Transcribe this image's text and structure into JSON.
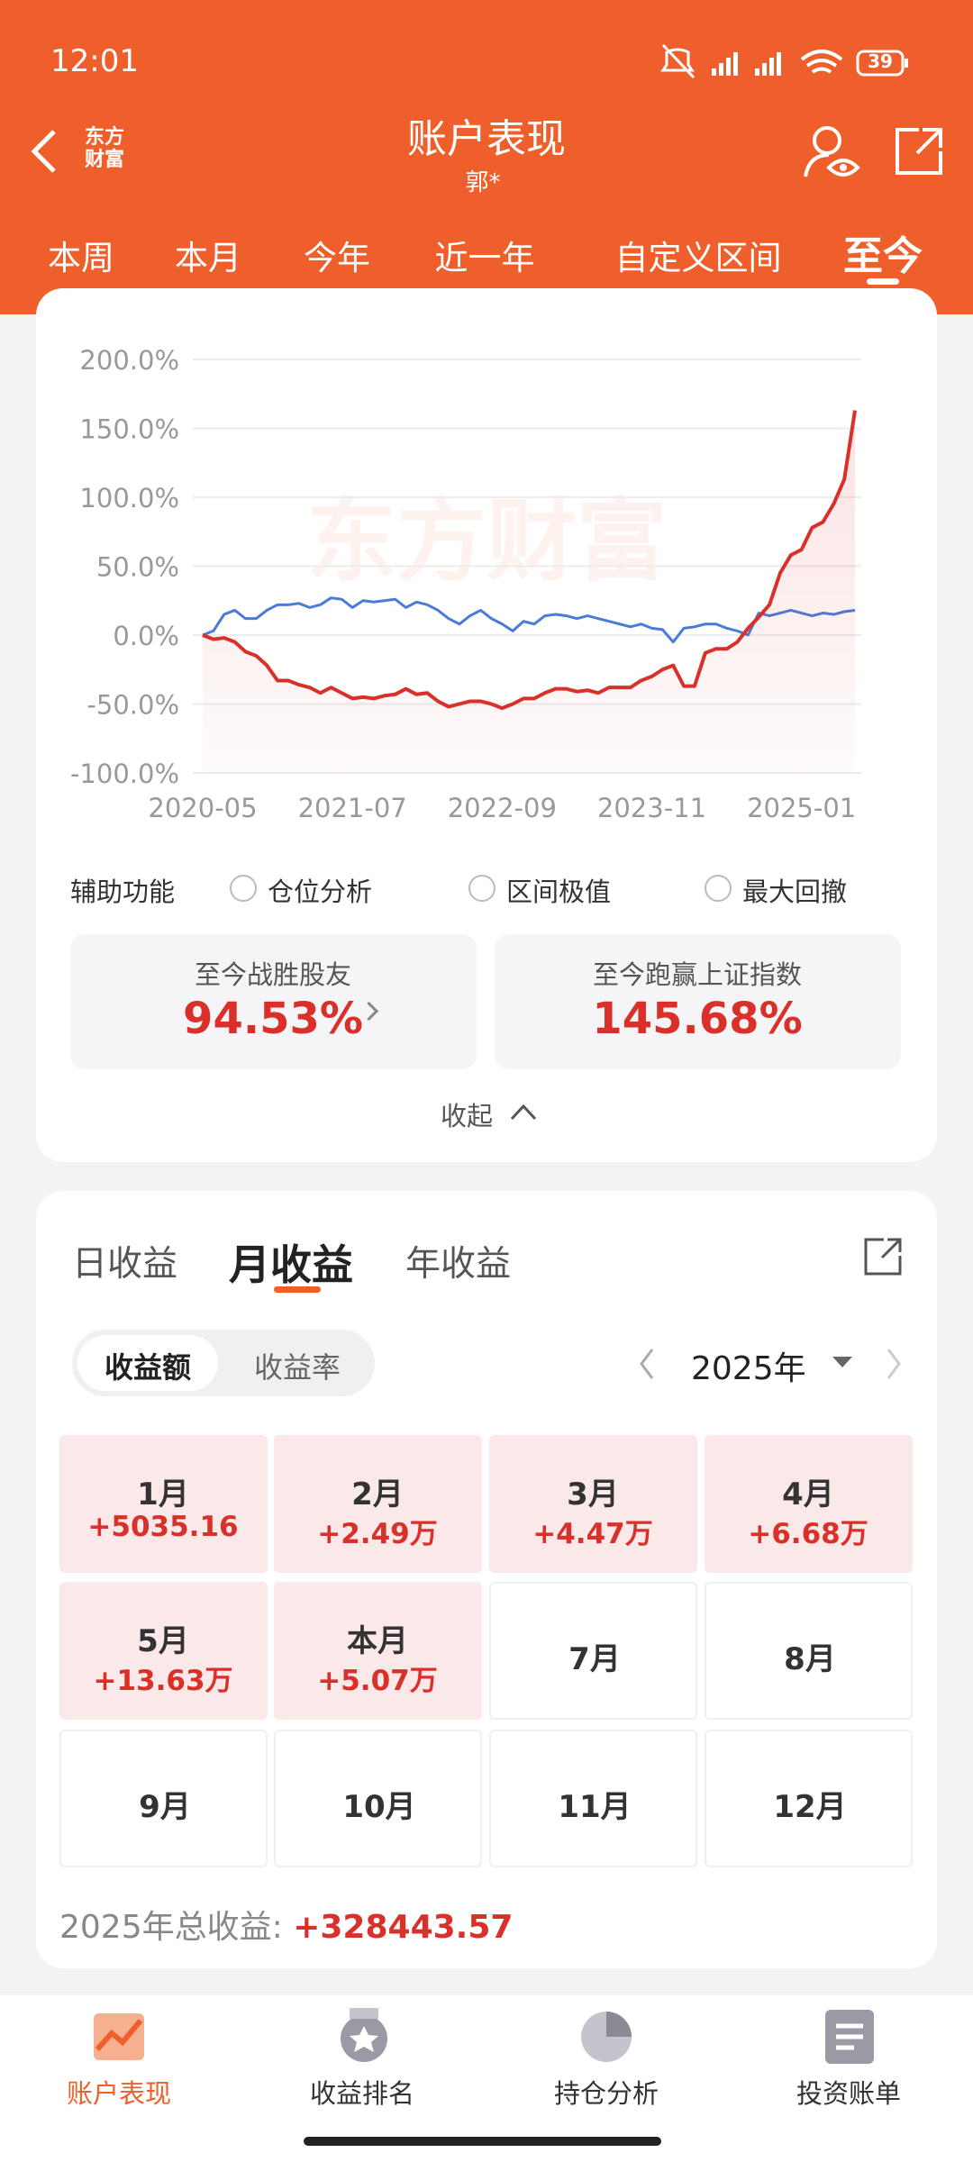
{
  "status_bar": {
    "time": "12:01",
    "battery": "39"
  },
  "header": {
    "title": "账户表现",
    "subtitle": "郭*",
    "logo_lines": [
      "东方",
      "财富"
    ]
  },
  "period_tabs": {
    "items": [
      "本周",
      "本月",
      "今年",
      "近一年",
      "自定义区间",
      "至今"
    ],
    "active": 5
  },
  "chart_data": {
    "type": "line",
    "watermark": "东方财富",
    "x": [
      "2020-05",
      "2020-06",
      "2020-07",
      "2020-08",
      "2020-09",
      "2020-10",
      "2020-11",
      "2020-12",
      "2021-01",
      "2021-02",
      "2021-03",
      "2021-04",
      "2021-05",
      "2021-06",
      "2021-07",
      "2021-08",
      "2021-09",
      "2021-10",
      "2021-11",
      "2021-12",
      "2022-01",
      "2022-02",
      "2022-03",
      "2022-04",
      "2022-05",
      "2022-06",
      "2022-07",
      "2022-08",
      "2022-09",
      "2022-10",
      "2022-11",
      "2022-12",
      "2023-01",
      "2023-02",
      "2023-03",
      "2023-04",
      "2023-05",
      "2023-06",
      "2023-07",
      "2023-08",
      "2023-09",
      "2023-10",
      "2023-11",
      "2023-12",
      "2024-01",
      "2024-02",
      "2024-03",
      "2024-04",
      "2024-05",
      "2024-06",
      "2024-07",
      "2024-08",
      "2024-09",
      "2024-10",
      "2024-11",
      "2024-12",
      "2025-01",
      "2025-02",
      "2025-03",
      "2025-04",
      "2025-05",
      "2025-06"
    ],
    "series": [
      {
        "color": "#d9302a",
        "values": [
          0,
          -3,
          -2,
          -5,
          -12,
          -15,
          -22,
          -33,
          -33,
          -36,
          -38,
          -42,
          -38,
          -42,
          -46,
          -45,
          -46,
          -44,
          -43,
          -39,
          -43,
          -42,
          -48,
          -52,
          -50,
          -48,
          -48,
          -50,
          -53,
          -50,
          -46,
          -46,
          -42,
          -39,
          -39,
          -41,
          -40,
          -42,
          -38,
          -38,
          -38,
          -33,
          -30,
          -25,
          -22,
          -37,
          -37,
          -13,
          -10,
          -10,
          -5,
          5,
          13,
          22,
          45,
          58,
          62,
          78,
          82,
          95,
          113,
          163
        ]
      },
      {
        "color": "#4a7bd8",
        "values": [
          0,
          3,
          15,
          18,
          12,
          12,
          18,
          22,
          22,
          23,
          20,
          22,
          27,
          26,
          20,
          25,
          24,
          25,
          26,
          20,
          24,
          22,
          18,
          12,
          8,
          14,
          18,
          12,
          8,
          3,
          10,
          8,
          14,
          15,
          14,
          12,
          14,
          12,
          10,
          8,
          6,
          8,
          5,
          4,
          -5,
          5,
          6,
          8,
          8,
          5,
          3,
          0,
          16,
          14,
          16,
          18,
          16,
          14,
          16,
          15,
          17,
          18
        ]
      }
    ],
    "ylim": [
      -100,
      200
    ],
    "yticks": [
      {
        "value": 200,
        "label": "200.0%"
      },
      {
        "value": 150,
        "label": "150.0%"
      },
      {
        "value": 100,
        "label": "100.0%"
      },
      {
        "value": 50,
        "label": "50.0%"
      },
      {
        "value": 0,
        "label": "0.0%"
      },
      {
        "value": -50,
        "label": "-50.0%"
      },
      {
        "value": -100,
        "label": "-100.0%"
      }
    ],
    "xticks": [
      "2020-05",
      "2021-07",
      "2022-09",
      "2023-11",
      "2025-01"
    ],
    "grid": true
  },
  "assist": {
    "label": "辅助功能",
    "options": [
      "仓位分析",
      "区间极值",
      "最大回撤"
    ]
  },
  "stats": [
    {
      "label": "至今战胜股友",
      "value": "94.53%"
    },
    {
      "label": "至今跑赢上证指数",
      "value": "145.68%"
    }
  ],
  "collapse": "收起",
  "returns": {
    "tabs": [
      "日收益",
      "月收益",
      "年收益"
    ],
    "active_tab": 1,
    "toggle": [
      "收益额",
      "收益率"
    ],
    "year": "2025年",
    "months": [
      {
        "month": "1月",
        "value": "+5035.16"
      },
      {
        "month": "2月",
        "value": "+2.49万"
      },
      {
        "month": "3月",
        "value": "+4.47万"
      },
      {
        "month": "4月",
        "value": "+6.68万"
      },
      {
        "month": "5月",
        "value": "+13.63万"
      },
      {
        "month": "本月",
        "value": "+5.07万"
      },
      {
        "month": "7月"
      },
      {
        "month": "8月"
      },
      {
        "month": "9月"
      },
      {
        "month": "10月"
      },
      {
        "month": "11月"
      },
      {
        "month": "12月"
      }
    ],
    "total_label": "2025年总收益:",
    "total_value": "+328443.57"
  },
  "bottom_nav": {
    "items": [
      "账户表现",
      "收益排名",
      "持仓分析",
      "投资账单"
    ],
    "active": 0
  }
}
